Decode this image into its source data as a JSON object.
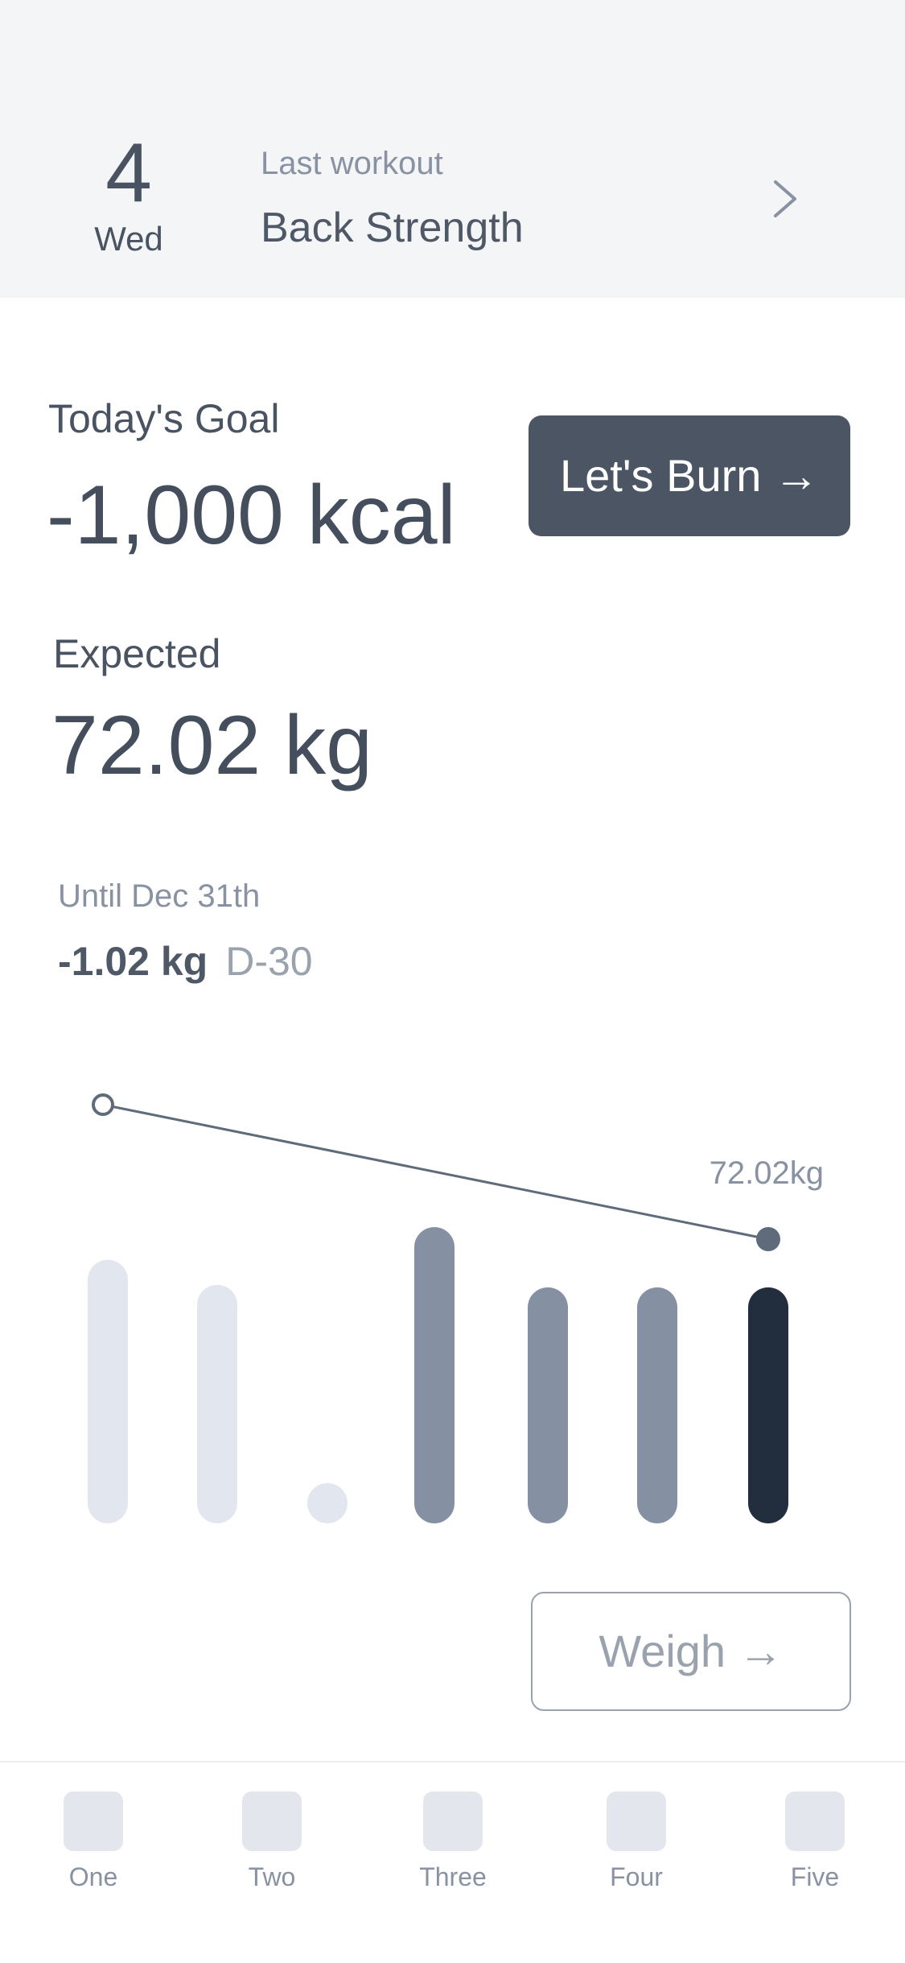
{
  "header": {
    "date_number": "4",
    "date_weekday": "Wed",
    "last_workout_label": "Last workout",
    "last_workout_name": "Back Strength",
    "chevron_icon": "chevron-right-icon"
  },
  "goal": {
    "label": "Today's Goal",
    "value": "-1,000 kcal",
    "button_label": "Let's Burn →"
  },
  "expected": {
    "label": "Expected",
    "value": "72.02 kg"
  },
  "until": {
    "label": "Until Dec 31th",
    "delta": "-1.02 kg",
    "dday": "D-30"
  },
  "chart_data": {
    "type": "bar",
    "categories": [
      "",
      "",
      "",
      "",
      "",
      "",
      ""
    ],
    "values": [
      210,
      190,
      32,
      236,
      188,
      188,
      188
    ],
    "states": [
      "light",
      "light",
      "light",
      "mid",
      "mid",
      "mid",
      "dark"
    ],
    "trend_line": {
      "start_index": 0,
      "end_index": 6,
      "end_label": "72.02kg"
    },
    "colors": {
      "light": "#e2e6ee",
      "mid": "#8591a3",
      "dark": "#222d3d",
      "line": "#5f6b7a"
    }
  },
  "weigh": {
    "button_label": "Weigh →"
  },
  "tabbar": {
    "items": [
      {
        "label": "One"
      },
      {
        "label": "Two"
      },
      {
        "label": "Three"
      },
      {
        "label": "Four"
      },
      {
        "label": "Five"
      }
    ]
  }
}
